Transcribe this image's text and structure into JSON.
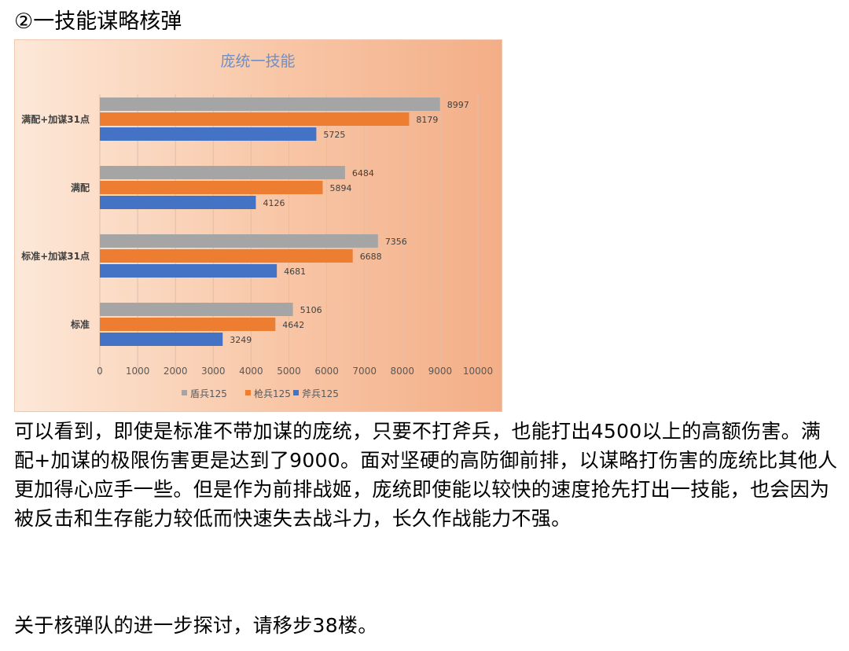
{
  "heading": "②一技能谋略核弹",
  "paragraph": "可以看到，即使是标准不带加谋的庞统，只要不打斧兵，也能打出4500以上的高额伤害。满配+加谋的极限伤害更是达到了9000。面对坚硬的高防御前排，以谋略打伤害的庞统比其他人更加得心应手一些。但是作为前排战姬，庞统即使能以较快的速度抢先打出一技能，也会因为被反击和生存能力较低而快速失去战斗力，长久作战能力不强。",
  "footer_line": "关于核弹队的进一步探讨，请移步38楼。",
  "chart_data": {
    "type": "bar",
    "orientation": "horizontal",
    "title": "庞统一技能",
    "categories": [
      "满配+加谋31点",
      "满配",
      "标准+加谋31点",
      "标准"
    ],
    "series": [
      {
        "name": "盾兵125",
        "color": "#a5a5a5",
        "values": [
          8997,
          6484,
          7356,
          5106
        ]
      },
      {
        "name": "枪兵125",
        "color": "#ed7d31",
        "values": [
          8179,
          5894,
          6688,
          4642
        ]
      },
      {
        "name": "斧兵125",
        "color": "#4472c4",
        "values": [
          5725,
          4126,
          4681,
          3249
        ]
      }
    ],
    "xlim": [
      0,
      10000
    ],
    "xticks": [
      "0",
      "1000",
      "2000",
      "3000",
      "4000",
      "5000",
      "6000",
      "7000",
      "8000",
      "9000",
      "10000"
    ],
    "grid": "vertical",
    "data_labels": true,
    "legend": "bottom",
    "title_color": "#6f8fc4"
  }
}
